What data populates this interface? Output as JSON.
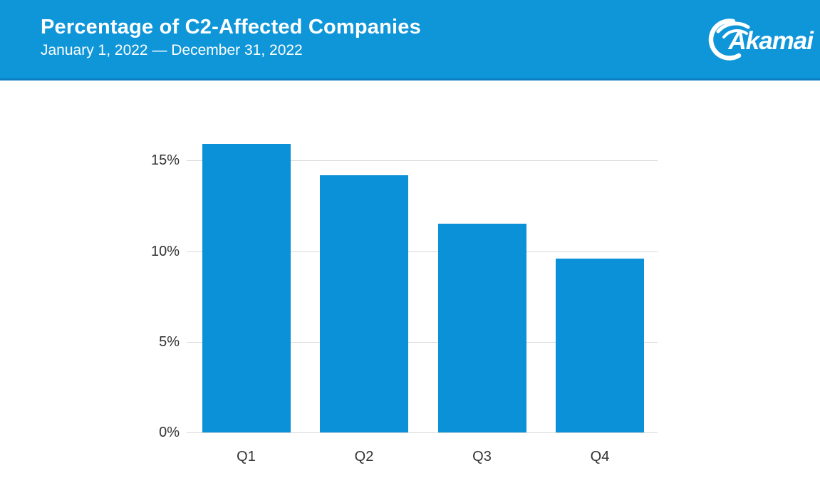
{
  "header": {
    "title": "Percentage of C2-Affected Companies",
    "subtitle": "January 1, 2022 — December 31, 2022",
    "logo_text": "Akamai",
    "background_color": "#0f96d9",
    "bottom_border_color": "#0b7fc0",
    "text_color": "#ffffff"
  },
  "chart_data": {
    "type": "bar",
    "title": "Percentage of C2-Affected Companies",
    "subtitle": "January 1, 2022 — December 31, 2022",
    "categories": [
      "Q1",
      "Q2",
      "Q3",
      "Q4"
    ],
    "values": [
      15.9,
      14.2,
      11.5,
      9.6
    ],
    "xlabel": "",
    "ylabel": "",
    "ylim": [
      0,
      16
    ],
    "yticks": [
      0,
      5,
      10,
      15
    ],
    "ytick_labels": [
      "0%",
      "5%",
      "10%",
      "15%"
    ],
    "grid": true,
    "legend": "none",
    "bar_color": "#0a91d8",
    "gridline_color": "#d9d9d9",
    "label_color": "#333333"
  }
}
